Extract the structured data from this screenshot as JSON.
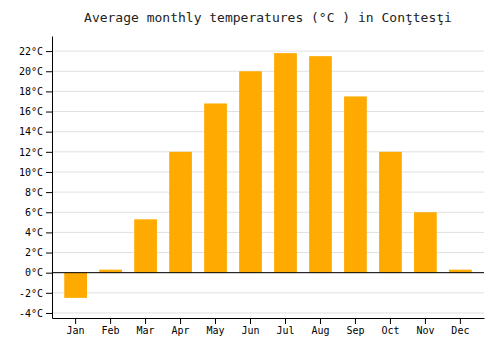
{
  "chart_data": {
    "type": "bar",
    "title": "Average monthly temperatures (°C ) in Conţtesţi",
    "categories": [
      "Jan",
      "Feb",
      "Mar",
      "Apr",
      "May",
      "Jun",
      "Jul",
      "Aug",
      "Sep",
      "Oct",
      "Nov",
      "Dec"
    ],
    "values": [
      -2.5,
      0.3,
      5.3,
      12.0,
      16.8,
      20.0,
      21.8,
      21.5,
      17.5,
      12.0,
      6.0,
      0.3
    ],
    "color": "#FFAA00",
    "ylim": [
      -4.5,
      23.5
    ],
    "yticks": [
      {
        "value": -4,
        "label": "-4°C"
      },
      {
        "value": -2,
        "label": "-2°C"
      },
      {
        "value": 0,
        "label": "0°C"
      },
      {
        "value": 2,
        "label": "2°C"
      },
      {
        "value": 4,
        "label": "4°C"
      },
      {
        "value": 6,
        "label": "6°C"
      },
      {
        "value": 8,
        "label": "8°C"
      },
      {
        "value": 10,
        "label": "10°C"
      },
      {
        "value": 12,
        "label": "12°C"
      },
      {
        "value": 14,
        "label": "14°C"
      },
      {
        "value": 16,
        "label": "16°C"
      },
      {
        "value": 18,
        "label": "18°C"
      },
      {
        "value": 20,
        "label": "20°C"
      },
      {
        "value": 22,
        "label": "22°C"
      }
    ],
    "grid": true
  }
}
